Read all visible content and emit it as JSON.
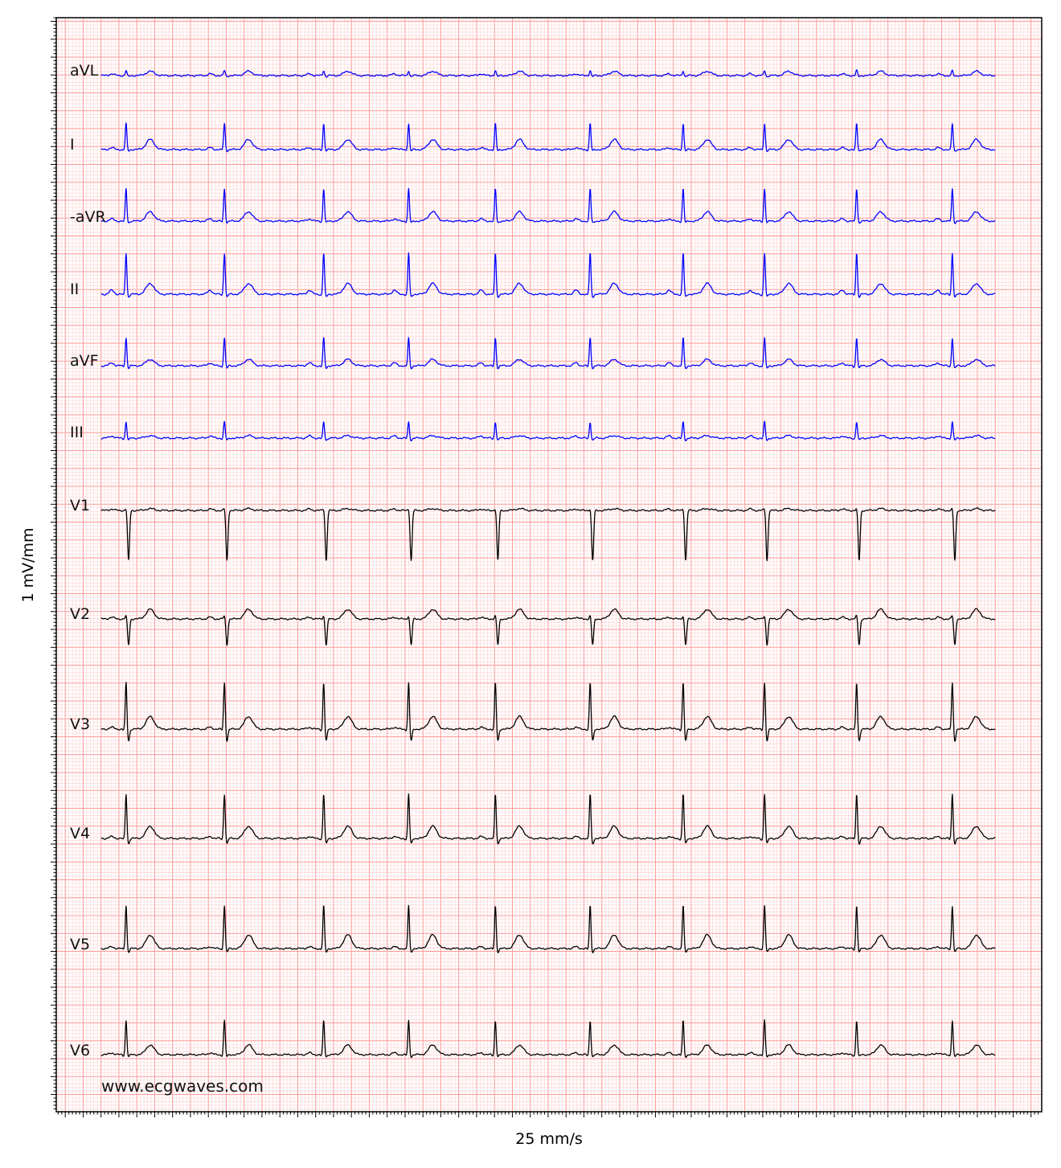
{
  "chart_data": {
    "type": "line",
    "title": "",
    "xlabel": "25 mm/s",
    "ylabel": "1 mV/mm",
    "watermark": "www.ecgwaves.com",
    "paper_speed_mm_per_s": 25,
    "grid": true,
    "grid_color": "#ff8080",
    "duration_s": 10,
    "beat_times_s": [
      0.28,
      1.38,
      2.49,
      3.44,
      4.41,
      5.47,
      6.51,
      7.42,
      8.45,
      9.52
    ],
    "units": "mm",
    "leads": [
      {
        "name": "aVL",
        "color": "#0000ff",
        "p": 0.5,
        "q": 0,
        "r": 1.4,
        "s": 0.3,
        "t": 1.2
      },
      {
        "name": "I",
        "color": "#0000ff",
        "p": 0.5,
        "q": 0.2,
        "r": 7.2,
        "s": 0.4,
        "t": 2.8
      },
      {
        "name": "-aVR",
        "color": "#0000ff",
        "p": 0.6,
        "q": 0.2,
        "r": 9.0,
        "s": 0.5,
        "t": 2.6
      },
      {
        "name": "II",
        "color": "#0000ff",
        "p": 1.1,
        "q": 0.3,
        "r": 11.5,
        "s": 0.8,
        "t": 3.0
      },
      {
        "name": "aVF",
        "color": "#0000ff",
        "p": 0.8,
        "q": 0.3,
        "r": 7.8,
        "s": 0.7,
        "t": 1.8
      },
      {
        "name": "III",
        "color": "#0000ff",
        "p": 0.6,
        "q": 0.2,
        "r": 4.5,
        "s": 0.6,
        "t": 0.7
      },
      {
        "name": "V1",
        "color": "#000000",
        "p": 0.4,
        "q": 0,
        "r": 0.6,
        "s": 14.0,
        "t": 0.5
      },
      {
        "name": "V2",
        "color": "#000000",
        "p": 0.5,
        "q": 0,
        "r": 1.0,
        "s": 7.2,
        "t": 2.7
      },
      {
        "name": "V3",
        "color": "#000000",
        "p": 0.5,
        "q": 0.3,
        "r": 13.0,
        "s": 3.3,
        "t": 3.5
      },
      {
        "name": "V4",
        "color": "#000000",
        "p": 0.5,
        "q": 0.3,
        "r": 12.4,
        "s": 1.5,
        "t": 3.4
      },
      {
        "name": "V5",
        "color": "#000000",
        "p": 0.5,
        "q": 0.3,
        "r": 12.0,
        "s": 1.0,
        "t": 3.8
      },
      {
        "name": "V6",
        "color": "#000000",
        "p": 0.5,
        "q": 0.3,
        "r": 9.5,
        "s": 0.6,
        "t": 2.7
      }
    ]
  }
}
